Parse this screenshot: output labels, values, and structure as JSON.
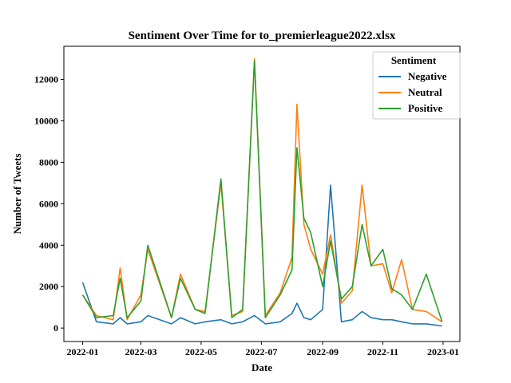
{
  "chart_data": {
    "type": "line",
    "title": "Sentiment Over Time for to_premierleague2022.xlsx",
    "xlabel": "Date",
    "ylabel": "Number of Tweets",
    "x_ticks": [
      "2022-01",
      "2022-03",
      "2022-05",
      "2022-07",
      "2022-09",
      "2022-11",
      "2023-01"
    ],
    "y_ticks": [
      0,
      2000,
      4000,
      6000,
      8000,
      10000,
      12000
    ],
    "xlim": [
      "2021-12-13",
      "2023-01-18"
    ],
    "ylim": [
      -650,
      13600
    ],
    "grid": false,
    "legend": {
      "title": "Sentiment",
      "placement": "top-right"
    },
    "x": [
      "2022-01-01",
      "2022-01-15",
      "2022-02-01",
      "2022-02-08",
      "2022-02-15",
      "2022-03-01",
      "2022-03-08",
      "2022-04-01",
      "2022-04-10",
      "2022-04-25",
      "2022-05-05",
      "2022-05-21",
      "2022-06-01",
      "2022-06-12",
      "2022-06-24",
      "2022-07-05",
      "2022-07-20",
      "2022-08-01",
      "2022-08-06",
      "2022-08-13",
      "2022-08-20",
      "2022-09-01",
      "2022-09-09",
      "2022-09-20",
      "2022-10-01",
      "2022-10-11",
      "2022-10-20",
      "2022-11-01",
      "2022-11-10",
      "2022-11-20",
      "2022-12-01",
      "2022-12-15",
      "2022-12-31"
    ],
    "series": [
      {
        "name": "Negative",
        "color": "#1f77b4",
        "values": [
          2200,
          300,
          200,
          500,
          200,
          300,
          600,
          200,
          500,
          200,
          300,
          400,
          200,
          300,
          600,
          200,
          300,
          700,
          1200,
          500,
          400,
          900,
          6900,
          300,
          400,
          800,
          500,
          400,
          400,
          300,
          200,
          200,
          100
        ]
      },
      {
        "name": "Neutral",
        "color": "#ff7f0e",
        "values": [
          1600,
          600,
          400,
          2900,
          400,
          1600,
          3800,
          500,
          2600,
          900,
          800,
          7000,
          600,
          800,
          13000,
          600,
          1700,
          3400,
          10800,
          5000,
          3800,
          2600,
          4500,
          1200,
          1800,
          6900,
          3000,
          3100,
          1700,
          3300,
          900,
          800,
          300
        ]
      },
      {
        "name": "Positive",
        "color": "#2ca02c",
        "values": [
          1600,
          500,
          600,
          2400,
          500,
          1300,
          4000,
          500,
          2400,
          900,
          700,
          7200,
          500,
          900,
          12900,
          500,
          1600,
          2800,
          8700,
          5300,
          4600,
          2000,
          4200,
          1400,
          2000,
          5000,
          3000,
          3800,
          1900,
          1600,
          900,
          2600,
          300
        ]
      }
    ]
  }
}
